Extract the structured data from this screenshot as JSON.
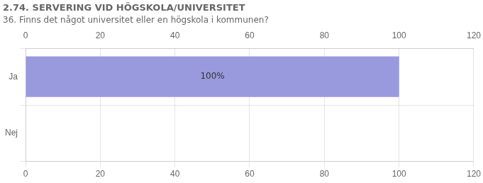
{
  "chart_data": {
    "type": "bar",
    "orientation": "horizontal",
    "title": "2.74. SERVERING VID HÖGSKOLA/UNIVERSITET",
    "subtitle": "36. Finns det något universitet eller en högskola i kommunen?",
    "categories": [
      "Ja",
      "Nej"
    ],
    "values": [
      100,
      0
    ],
    "value_labels": [
      "100%",
      null
    ],
    "data_labels": true,
    "color": "#9999dd",
    "xlim": [
      0,
      120
    ],
    "xticks": [
      0,
      20,
      40,
      60,
      80,
      100,
      120
    ],
    "grid": true
  }
}
